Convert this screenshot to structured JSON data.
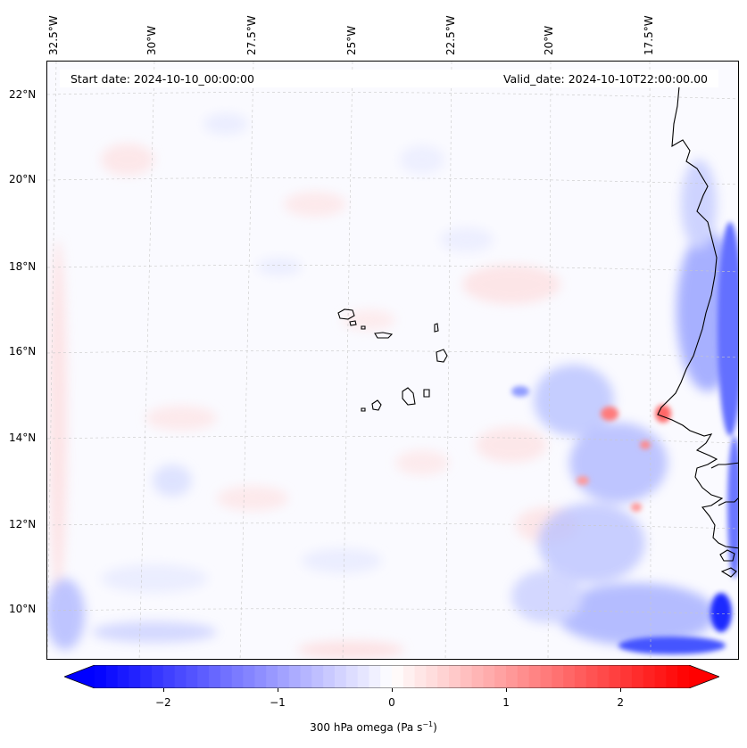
{
  "map": {
    "start_date": "Start date: 2024-10-10_00:00:00",
    "valid_date": "Valid_date: 2024-10-10T22:00:00.00",
    "lon_labels": [
      "32.5°W",
      "30°W",
      "27.5°W",
      "25°W",
      "22.5°W",
      "20°W",
      "17.5°W"
    ],
    "lat_labels": [
      "22°N",
      "20°N",
      "18°N",
      "16°N",
      "14°N",
      "12°N",
      "10°N"
    ]
  },
  "colorbar": {
    "label_main": "300 hPa omega (Pa s",
    "label_sup": "−1",
    "label_end": ")",
    "ticks": [
      "−2",
      "−1",
      "0",
      "1",
      "2"
    ],
    "tick_values": [
      -2,
      -1,
      0,
      1,
      2
    ],
    "range": [
      -2.6,
      2.6
    ],
    "colors": {
      "negative": "#0000ff",
      "zero": "#ffffff",
      "positive": "#ff0000"
    }
  }
}
